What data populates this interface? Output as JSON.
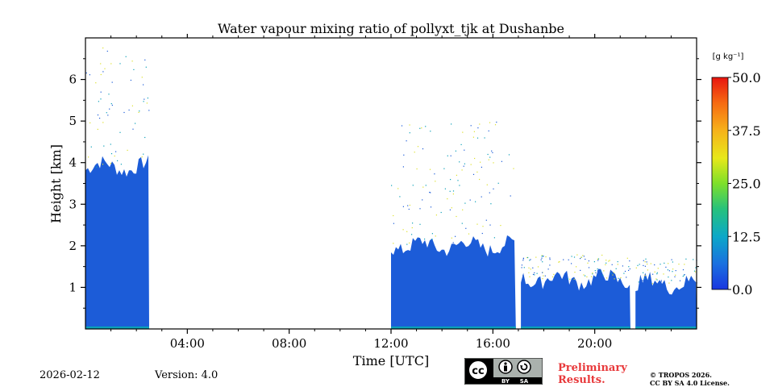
{
  "chart_data": {
    "type": "heatmap",
    "title": "Water vapour mixing ratio of pollyxt_tjk at Dushanbe",
    "xlabel": "Time [UTC]",
    "ylabel": "Height [km]",
    "xlim_hours": [
      0,
      24
    ],
    "ylim_km": [
      0,
      7
    ],
    "x_ticks": [
      {
        "value": 4,
        "label": "04:00"
      },
      {
        "value": 8,
        "label": "08:00"
      },
      {
        "value": 12,
        "label": "12:00"
      },
      {
        "value": 16,
        "label": "16:00"
      },
      {
        "value": 20,
        "label": "20:00"
      }
    ],
    "y_ticks": [
      {
        "value": 1,
        "label": "1"
      },
      {
        "value": 2,
        "label": "2"
      },
      {
        "value": 3,
        "label": "3"
      },
      {
        "value": 4,
        "label": "4"
      },
      {
        "value": 5,
        "label": "5"
      },
      {
        "value": 6,
        "label": "6"
      }
    ],
    "colorbar": {
      "unit_label": "[g kg⁻¹]",
      "range": [
        0,
        50
      ],
      "ticks": [
        {
          "value": 0,
          "label": "0.0"
        },
        {
          "value": 12.5,
          "label": "12.5"
        },
        {
          "value": 25,
          "label": "25.0"
        },
        {
          "value": 37.5,
          "label": "37.5"
        },
        {
          "value": 50,
          "label": "50.0"
        }
      ]
    },
    "data_segments": [
      {
        "start_h": 0.0,
        "end_h": 2.5,
        "top_km": 3.9
      },
      {
        "start_h": 12.0,
        "end_h": 16.9,
        "top_km": 2.0
      },
      {
        "start_h": 17.1,
        "end_h": 21.4,
        "top_km": 1.2
      },
      {
        "start_h": 21.6,
        "end_h": 24.0,
        "top_km": 1.1
      }
    ],
    "colors": {
      "low": "#1c5cd8",
      "mid": "#0ba0b8",
      "high": "#dde02a"
    }
  },
  "footer": {
    "date": "2026-02-12",
    "version": "Version: 4.0",
    "preliminary_line1": "Preliminary",
    "preliminary_line2": "Results.",
    "copyright_line1": "© TROPOS 2026.",
    "copyright_line2": "CC BY SA 4.0 License."
  },
  "license_badge": {
    "cc": "cc",
    "by": "BY",
    "sa": "SA"
  }
}
